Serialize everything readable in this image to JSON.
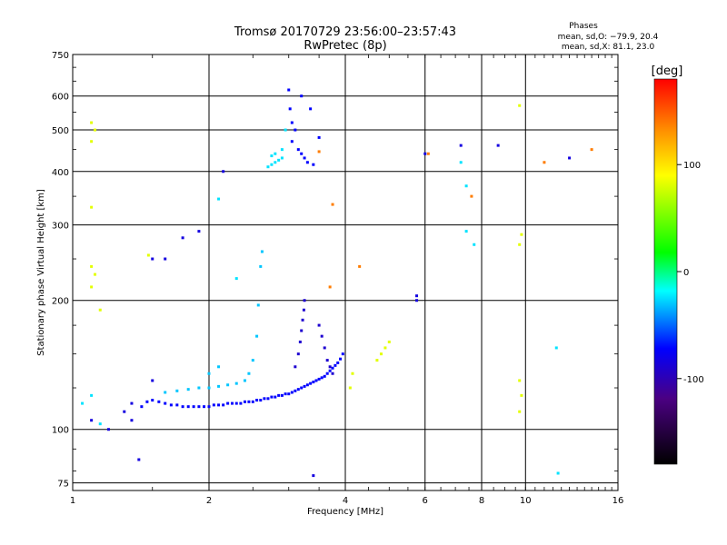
{
  "chart_data": {
    "type": "scatter",
    "title": "Tromsø 20170729 23:56:00–23:57:43",
    "subtitle": "RwPretec (8p)",
    "stats": {
      "heading": "Phases",
      "line_o": "mean, sd,O: −79.9, 20.4",
      "line_x": "mean, sd,X: 81.1, 23.0"
    },
    "xlabel": "Frequency [MHz]",
    "ylabel": "Stationary phase Virtual Height [km]",
    "xscale": "log2",
    "yscale": "log",
    "xlim": [
      1,
      16
    ],
    "ylim": [
      72,
      750
    ],
    "x_ticks": [
      1,
      2,
      4,
      6,
      8,
      10,
      16
    ],
    "x_tick_labels": [
      "1",
      "2",
      "4",
      "6",
      "8",
      "10",
      "16"
    ],
    "y_ticks": [
      75,
      100,
      200,
      300,
      400,
      500,
      600,
      750
    ],
    "y_tick_labels": [
      "75",
      "100",
      "200",
      "300",
      "400",
      "500",
      "600",
      "750"
    ],
    "grid": true,
    "colorbar": {
      "label": "[deg]",
      "range": [
        -180,
        180
      ],
      "ticks": [
        100,
        0,
        -100
      ],
      "tick_labels": [
        "100",
        "0",
        "-100"
      ]
    },
    "series": [
      {
        "name": "O-mode trace (bottom, blue)",
        "points": [
          [
            1.42,
            113
          ],
          [
            1.46,
            116
          ],
          [
            1.5,
            117
          ],
          [
            1.55,
            116
          ],
          [
            1.6,
            115
          ],
          [
            1.65,
            114
          ],
          [
            1.7,
            114
          ],
          [
            1.75,
            113
          ],
          [
            1.8,
            113
          ],
          [
            1.85,
            113
          ],
          [
            1.9,
            113
          ],
          [
            1.95,
            113
          ],
          [
            2.0,
            113
          ],
          [
            2.05,
            114
          ],
          [
            2.1,
            114
          ],
          [
            2.15,
            114
          ],
          [
            2.2,
            115
          ],
          [
            2.25,
            115
          ],
          [
            2.3,
            115
          ],
          [
            2.35,
            115
          ],
          [
            2.4,
            116
          ],
          [
            2.45,
            116
          ],
          [
            2.5,
            116
          ],
          [
            2.55,
            117
          ],
          [
            2.6,
            117
          ],
          [
            2.65,
            118
          ],
          [
            2.7,
            118
          ],
          [
            2.75,
            119
          ],
          [
            2.8,
            119
          ],
          [
            2.85,
            120
          ],
          [
            2.9,
            120
          ],
          [
            2.95,
            121
          ],
          [
            3.0,
            121
          ],
          [
            3.05,
            122
          ],
          [
            3.1,
            123
          ],
          [
            3.15,
            124
          ],
          [
            3.2,
            125
          ],
          [
            3.25,
            126
          ],
          [
            3.3,
            127
          ],
          [
            3.35,
            128
          ],
          [
            3.4,
            129
          ],
          [
            3.45,
            130
          ],
          [
            3.5,
            131
          ],
          [
            3.55,
            132
          ],
          [
            3.6,
            133
          ],
          [
            3.65,
            135
          ],
          [
            3.7,
            137
          ],
          [
            3.75,
            139
          ],
          [
            3.8,
            141
          ],
          [
            3.85,
            143
          ],
          [
            3.9,
            146
          ],
          [
            3.95,
            150
          ]
        ],
        "phase": -100
      },
      {
        "name": "O-mode spur (dark blue)",
        "points": [
          [
            3.1,
            140
          ],
          [
            3.15,
            150
          ],
          [
            3.18,
            160
          ],
          [
            3.2,
            170
          ],
          [
            3.22,
            180
          ],
          [
            3.24,
            190
          ],
          [
            3.25,
            200
          ],
          [
            3.5,
            175
          ],
          [
            3.55,
            165
          ],
          [
            3.6,
            155
          ],
          [
            3.65,
            145
          ],
          [
            3.7,
            140
          ],
          [
            3.75,
            135
          ]
        ],
        "phase": -115
      },
      {
        "name": "O-mode upper cluster (blue)",
        "points": [
          [
            3.0,
            620
          ],
          [
            3.02,
            560
          ],
          [
            3.05,
            520
          ],
          [
            3.1,
            500
          ],
          [
            3.05,
            470
          ],
          [
            3.15,
            450
          ],
          [
            3.2,
            440
          ],
          [
            3.25,
            430
          ],
          [
            3.3,
            420
          ],
          [
            3.4,
            415
          ],
          [
            3.5,
            480
          ],
          [
            3.35,
            560
          ],
          [
            3.2,
            600
          ]
        ],
        "phase": -100
      },
      {
        "name": "X-mode trace (cyan)",
        "points": [
          [
            1.6,
            122
          ],
          [
            1.7,
            123
          ],
          [
            1.8,
            124
          ],
          [
            1.9,
            125
          ],
          [
            2.0,
            125
          ],
          [
            2.1,
            126
          ],
          [
            2.2,
            127
          ],
          [
            2.3,
            128
          ],
          [
            2.4,
            130
          ],
          [
            2.45,
            135
          ],
          [
            2.5,
            145
          ],
          [
            2.55,
            165
          ],
          [
            2.57,
            195
          ],
          [
            2.6,
            240
          ],
          [
            2.62,
            260
          ],
          [
            2.0,
            135
          ],
          [
            2.1,
            140
          ]
        ],
        "phase": -65
      },
      {
        "name": "X-mode upper cluster (cyan)",
        "points": [
          [
            2.7,
            410
          ],
          [
            2.75,
            415
          ],
          [
            2.8,
            420
          ],
          [
            2.85,
            425
          ],
          [
            2.9,
            430
          ],
          [
            2.75,
            435
          ],
          [
            2.8,
            440
          ],
          [
            2.9,
            450
          ],
          [
            2.95,
            500
          ]
        ],
        "phase": -60
      },
      {
        "name": "Yellow/green echoes",
        "points": [
          [
            1.1,
            240
          ],
          [
            1.12,
            230
          ],
          [
            1.1,
            215
          ],
          [
            1.1,
            470
          ],
          [
            1.12,
            500
          ],
          [
            1.1,
            520
          ],
          [
            1.1,
            330
          ],
          [
            1.15,
            190
          ],
          [
            4.8,
            150
          ],
          [
            4.9,
            155
          ],
          [
            5.0,
            160
          ],
          [
            4.7,
            145
          ],
          [
            4.1,
            125
          ],
          [
            4.15,
            135
          ],
          [
            9.7,
            270
          ],
          [
            9.8,
            285
          ],
          [
            9.7,
            130
          ],
          [
            9.8,
            120
          ],
          [
            9.7,
            110
          ],
          [
            9.7,
            570
          ],
          [
            1.47,
            255
          ]
        ],
        "phase": 80
      },
      {
        "name": "Scattered dark blue",
        "points": [
          [
            1.2,
            100
          ],
          [
            1.1,
            105
          ],
          [
            1.35,
            105
          ],
          [
            1.35,
            115
          ],
          [
            1.5,
            250
          ],
          [
            1.6,
            250
          ],
          [
            1.75,
            280
          ],
          [
            1.9,
            290
          ],
          [
            5.75,
            205
          ],
          [
            5.75,
            200
          ],
          [
            6.0,
            440
          ],
          [
            7.2,
            460
          ],
          [
            8.7,
            460
          ],
          [
            12.5,
            430
          ],
          [
            2.15,
            400
          ],
          [
            1.4,
            85
          ],
          [
            1.3,
            110
          ],
          [
            3.4,
            78
          ],
          [
            1.5,
            130
          ]
        ],
        "phase": -110
      },
      {
        "name": "Scattered cyan",
        "points": [
          [
            1.05,
            115
          ],
          [
            1.1,
            120
          ],
          [
            1.15,
            103
          ],
          [
            7.2,
            420
          ],
          [
            7.4,
            370
          ],
          [
            2.1,
            345
          ],
          [
            11.7,
            155
          ],
          [
            11.8,
            79
          ],
          [
            7.4,
            290
          ],
          [
            7.7,
            270
          ],
          [
            2.3,
            225
          ]
        ],
        "phase": -60
      },
      {
        "name": "Red/orange echoes",
        "points": [
          [
            6.1,
            440
          ],
          [
            7.6,
            350
          ],
          [
            14.0,
            450
          ],
          [
            3.7,
            215
          ],
          [
            3.5,
            445
          ],
          [
            11.0,
            420
          ],
          [
            3.75,
            335
          ],
          [
            4.3,
            240
          ]
        ],
        "phase": 140
      }
    ]
  }
}
